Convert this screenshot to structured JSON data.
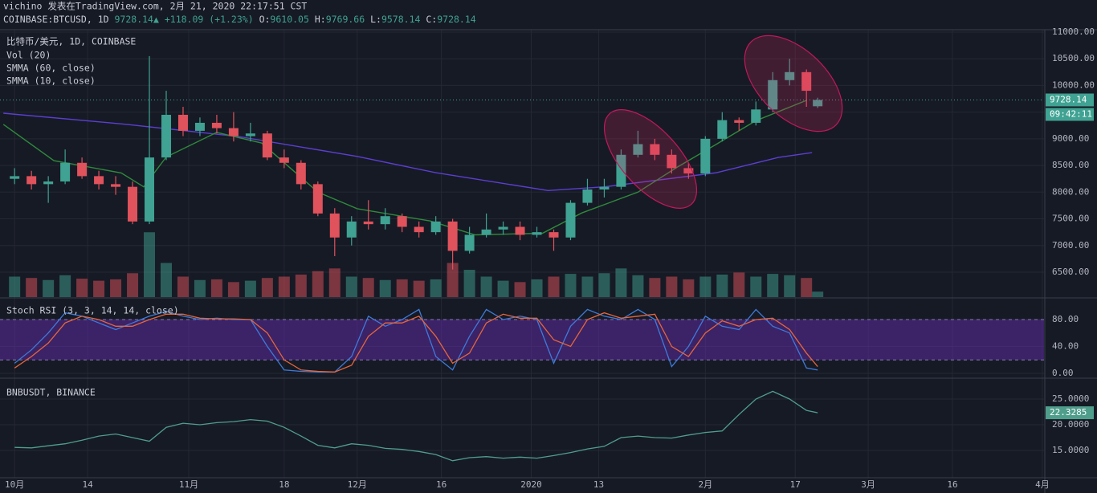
{
  "header": {
    "author_line": "vichino 发表在TradingView.com, 2月 21, 2020 22:17:51 CST",
    "symbol": "COINBASE:BTCUSD, 1D",
    "price": "9728.14",
    "arrow": "▲",
    "change": "+118.09 (+1.23%)",
    "ohlc": [
      {
        "label": "O:",
        "value": "9610.05"
      },
      {
        "label": "H:",
        "value": "9769.66"
      },
      {
        "label": "L:",
        "value": "9578.14"
      },
      {
        "label": "C:",
        "value": "9728.14"
      }
    ]
  },
  "chart_data": [
    {
      "type": "candlestick",
      "title": "比特币/美元, 1D, COINBASE",
      "x": [
        0,
        3,
        6,
        9,
        12,
        15,
        18,
        21,
        24,
        27,
        30,
        33,
        36,
        39,
        42,
        45,
        48,
        51,
        54,
        57,
        60,
        63,
        66,
        69,
        72,
        75,
        78,
        81,
        84,
        87,
        90,
        93,
        96,
        99,
        102,
        105,
        108,
        111,
        114,
        117,
        120,
        123,
        126,
        129,
        132,
        135,
        138,
        141,
        143
      ],
      "open": [
        8250,
        8300,
        8150,
        8200,
        8550,
        8300,
        8150,
        8100,
        7450,
        8650,
        9450,
        9150,
        9300,
        9200,
        9050,
        9100,
        8650,
        8550,
        8150,
        7600,
        7150,
        7450,
        7400,
        7550,
        7350,
        7250,
        7450,
        6900,
        7200,
        7300,
        7350,
        7200,
        7250,
        7150,
        7800,
        8050,
        8100,
        8700,
        8900,
        8700,
        8450,
        8350,
        9000,
        9350,
        9300,
        9550,
        10100,
        10250,
        9610.05
      ],
      "high": [
        8450,
        8400,
        8300,
        8800,
        8650,
        8400,
        8300,
        8200,
        10550,
        9900,
        9600,
        9400,
        9450,
        9500,
        9300,
        9150,
        8800,
        8600,
        8200,
        7700,
        7550,
        7850,
        7700,
        7600,
        7450,
        7550,
        7500,
        7350,
        7600,
        7450,
        7450,
        7350,
        7300,
        7850,
        8250,
        8250,
        8800,
        9150,
        9000,
        8800,
        8550,
        9050,
        9500,
        9400,
        9700,
        10250,
        10500,
        10300,
        9769.66
      ],
      "low": [
        8150,
        8050,
        7800,
        8150,
        8250,
        8050,
        7950,
        7400,
        7400,
        8600,
        9050,
        9050,
        9100,
        8950,
        8950,
        8600,
        8450,
        8050,
        7550,
        6800,
        7000,
        7300,
        7300,
        7250,
        7150,
        7200,
        6550,
        6850,
        7150,
        7200,
        7100,
        7150,
        6900,
        7100,
        7750,
        7900,
        8050,
        8650,
        8600,
        8350,
        8250,
        8300,
        8950,
        9150,
        9250,
        9500,
        10000,
        9600,
        9578.14
      ],
      "close": [
        8300,
        8150,
        8200,
        8550,
        8300,
        8150,
        8100,
        7450,
        8650,
        9450,
        9150,
        9300,
        9200,
        9050,
        9100,
        8650,
        8550,
        8150,
        7600,
        7150,
        7450,
        7400,
        7550,
        7350,
        7250,
        7450,
        6900,
        7200,
        7300,
        7350,
        7200,
        7250,
        7150,
        7800,
        8050,
        8100,
        8700,
        8900,
        8700,
        8450,
        8350,
        9000,
        9350,
        9300,
        9550,
        10100,
        10250,
        9900,
        9728.14
      ],
      "up_color": "#3fa292",
      "down_color": "#e0525c",
      "ylim": [
        6033,
        11045
      ],
      "yticks": [
        {
          "value": 6500,
          "label": "6500.00"
        },
        {
          "value": 7000,
          "label": "7000.00"
        },
        {
          "value": 7500,
          "label": "7500.00"
        },
        {
          "value": 8000,
          "label": "8000.00"
        },
        {
          "value": 8500,
          "label": "8500.00"
        },
        {
          "value": 9000,
          "label": "9000.00"
        },
        {
          "value": 9500,
          "label": "9500.00"
        },
        {
          "value": 10000,
          "label": "10000.00"
        },
        {
          "value": 10500,
          "label": "10500.00"
        },
        {
          "value": 11000,
          "label": "11000.00"
        }
      ],
      "volume": {
        "name": "Vol (20)",
        "vlim": [
          0,
          100
        ],
        "values": [
          30,
          28,
          25,
          32,
          27,
          24,
          26,
          35,
          95,
          50,
          30,
          25,
          26,
          22,
          24,
          28,
          30,
          33,
          38,
          42,
          30,
          28,
          25,
          26,
          24,
          26,
          50,
          40,
          30,
          24,
          22,
          26,
          30,
          34,
          30,
          35,
          42,
          32,
          28,
          30,
          26,
          30,
          33,
          36,
          30,
          34,
          32,
          28,
          8
        ]
      },
      "overlays": [
        {
          "name": "SMMA (60, close)",
          "color": "#5b3fd1",
          "x": [
            -2,
            20,
            40,
            61,
            75,
            95,
            105,
            125,
            136,
            142
          ],
          "values": [
            9480,
            9270,
            9040,
            8670,
            8365,
            8030,
            8100,
            8365,
            8650,
            8740
          ]
        },
        {
          "name": "SMMA (10, close)",
          "color": "#2f8a3c",
          "x": [
            -2,
            7,
            19,
            23,
            27,
            36,
            44,
            54,
            61,
            74,
            82,
            94,
            101,
            111,
            118,
            125,
            132,
            141
          ],
          "values": [
            9270,
            8590,
            8360,
            8100,
            8660,
            9120,
            8920,
            8000,
            7690,
            7460,
            7200,
            7230,
            7610,
            8000,
            8470,
            8900,
            9340,
            9720
          ]
        }
      ],
      "price_tag": "9728.14",
      "countdown": "09:42:11"
    },
    {
      "type": "line",
      "title": "Stoch RSI (3, 3, 14, 14, close)",
      "x": [
        0,
        3,
        6,
        9,
        12,
        15,
        18,
        21,
        24,
        27,
        30,
        33,
        36,
        39,
        42,
        45,
        48,
        51,
        54,
        57,
        60,
        63,
        66,
        69,
        72,
        75,
        78,
        81,
        84,
        87,
        90,
        93,
        96,
        99,
        102,
        105,
        108,
        111,
        114,
        117,
        120,
        123,
        126,
        129,
        132,
        135,
        138,
        141,
        143
      ],
      "series": [
        {
          "color": "#3d7bd9",
          "values": [
            15,
            35,
            60,
            90,
            85,
            75,
            65,
            75,
            85,
            92,
            85,
            80,
            82,
            80,
            80,
            40,
            5,
            3,
            2,
            2,
            25,
            85,
            70,
            80,
            95,
            25,
            5,
            55,
            95,
            80,
            85,
            80,
            15,
            70,
            95,
            85,
            80,
            95,
            80,
            10,
            40,
            85,
            70,
            65,
            95,
            70,
            60,
            8,
            5
          ]
        },
        {
          "color": "#e6663a",
          "values": [
            8,
            25,
            45,
            75,
            85,
            80,
            70,
            70,
            80,
            88,
            88,
            82,
            81,
            81,
            80,
            60,
            20,
            5,
            3,
            2,
            12,
            55,
            75,
            75,
            85,
            55,
            15,
            30,
            75,
            88,
            82,
            82,
            50,
            40,
            80,
            90,
            82,
            85,
            88,
            40,
            25,
            60,
            78,
            70,
            80,
            82,
            65,
            30,
            10
          ]
        }
      ],
      "band": [
        20,
        80
      ],
      "band_color": "#5c2a9e",
      "ylim": [
        -6,
        111
      ],
      "yticks": [
        {
          "value": 0,
          "label": "0.00"
        },
        {
          "value": 40,
          "label": "40.00"
        },
        {
          "value": 80,
          "label": "80.00"
        }
      ]
    },
    {
      "type": "line",
      "title": "BNBUSDT, BINANCE",
      "x": [
        0,
        3,
        6,
        9,
        12,
        15,
        18,
        21,
        24,
        27,
        30,
        33,
        36,
        39,
        42,
        45,
        48,
        51,
        54,
        57,
        60,
        63,
        66,
        69,
        72,
        75,
        78,
        81,
        84,
        87,
        90,
        93,
        96,
        99,
        102,
        105,
        108,
        111,
        114,
        117,
        120,
        123,
        126,
        129,
        132,
        135,
        138,
        141,
        143
      ],
      "series": [
        {
          "color": "#4f9e8c",
          "values": [
            15.6,
            15.5,
            15.9,
            16.3,
            17.0,
            17.8,
            18.2,
            17.5,
            16.8,
            19.5,
            20.3,
            20.0,
            20.4,
            20.6,
            21.0,
            20.7,
            19.5,
            17.8,
            16.0,
            15.5,
            16.3,
            16.0,
            15.4,
            15.2,
            14.8,
            14.2,
            13.0,
            13.6,
            13.8,
            13.5,
            13.7,
            13.5,
            14.0,
            14.6,
            15.3,
            15.8,
            17.5,
            17.8,
            17.5,
            17.4,
            18.0,
            18.5,
            18.8,
            22.0,
            25.0,
            26.5,
            25.0,
            22.8,
            22.3285
          ]
        }
      ],
      "ylim": [
        9.69,
        28.9
      ],
      "yticks": [
        {
          "value": 15,
          "label": "15.0000"
        },
        {
          "value": 20,
          "label": "20.0000"
        },
        {
          "value": 25,
          "label": "25.0000"
        }
      ],
      "price_tag": "22.3285",
      "xlim": [
        -2.6,
        183.3
      ],
      "xticks": [
        {
          "value": 0,
          "label": "10月"
        },
        {
          "value": 13,
          "label": "14"
        },
        {
          "value": 31,
          "label": "11月"
        },
        {
          "value": 48,
          "label": "18"
        },
        {
          "value": 61,
          "label": "12月"
        },
        {
          "value": 76,
          "label": "16"
        },
        {
          "value": 92,
          "label": "2020"
        },
        {
          "value": 104,
          "label": "13"
        },
        {
          "value": 123,
          "label": "2月"
        },
        {
          "value": 139,
          "label": "17"
        },
        {
          "value": 152,
          "label": "3月"
        },
        {
          "value": 167,
          "label": "16"
        },
        {
          "value": 183,
          "label": "4月"
        }
      ]
    }
  ]
}
